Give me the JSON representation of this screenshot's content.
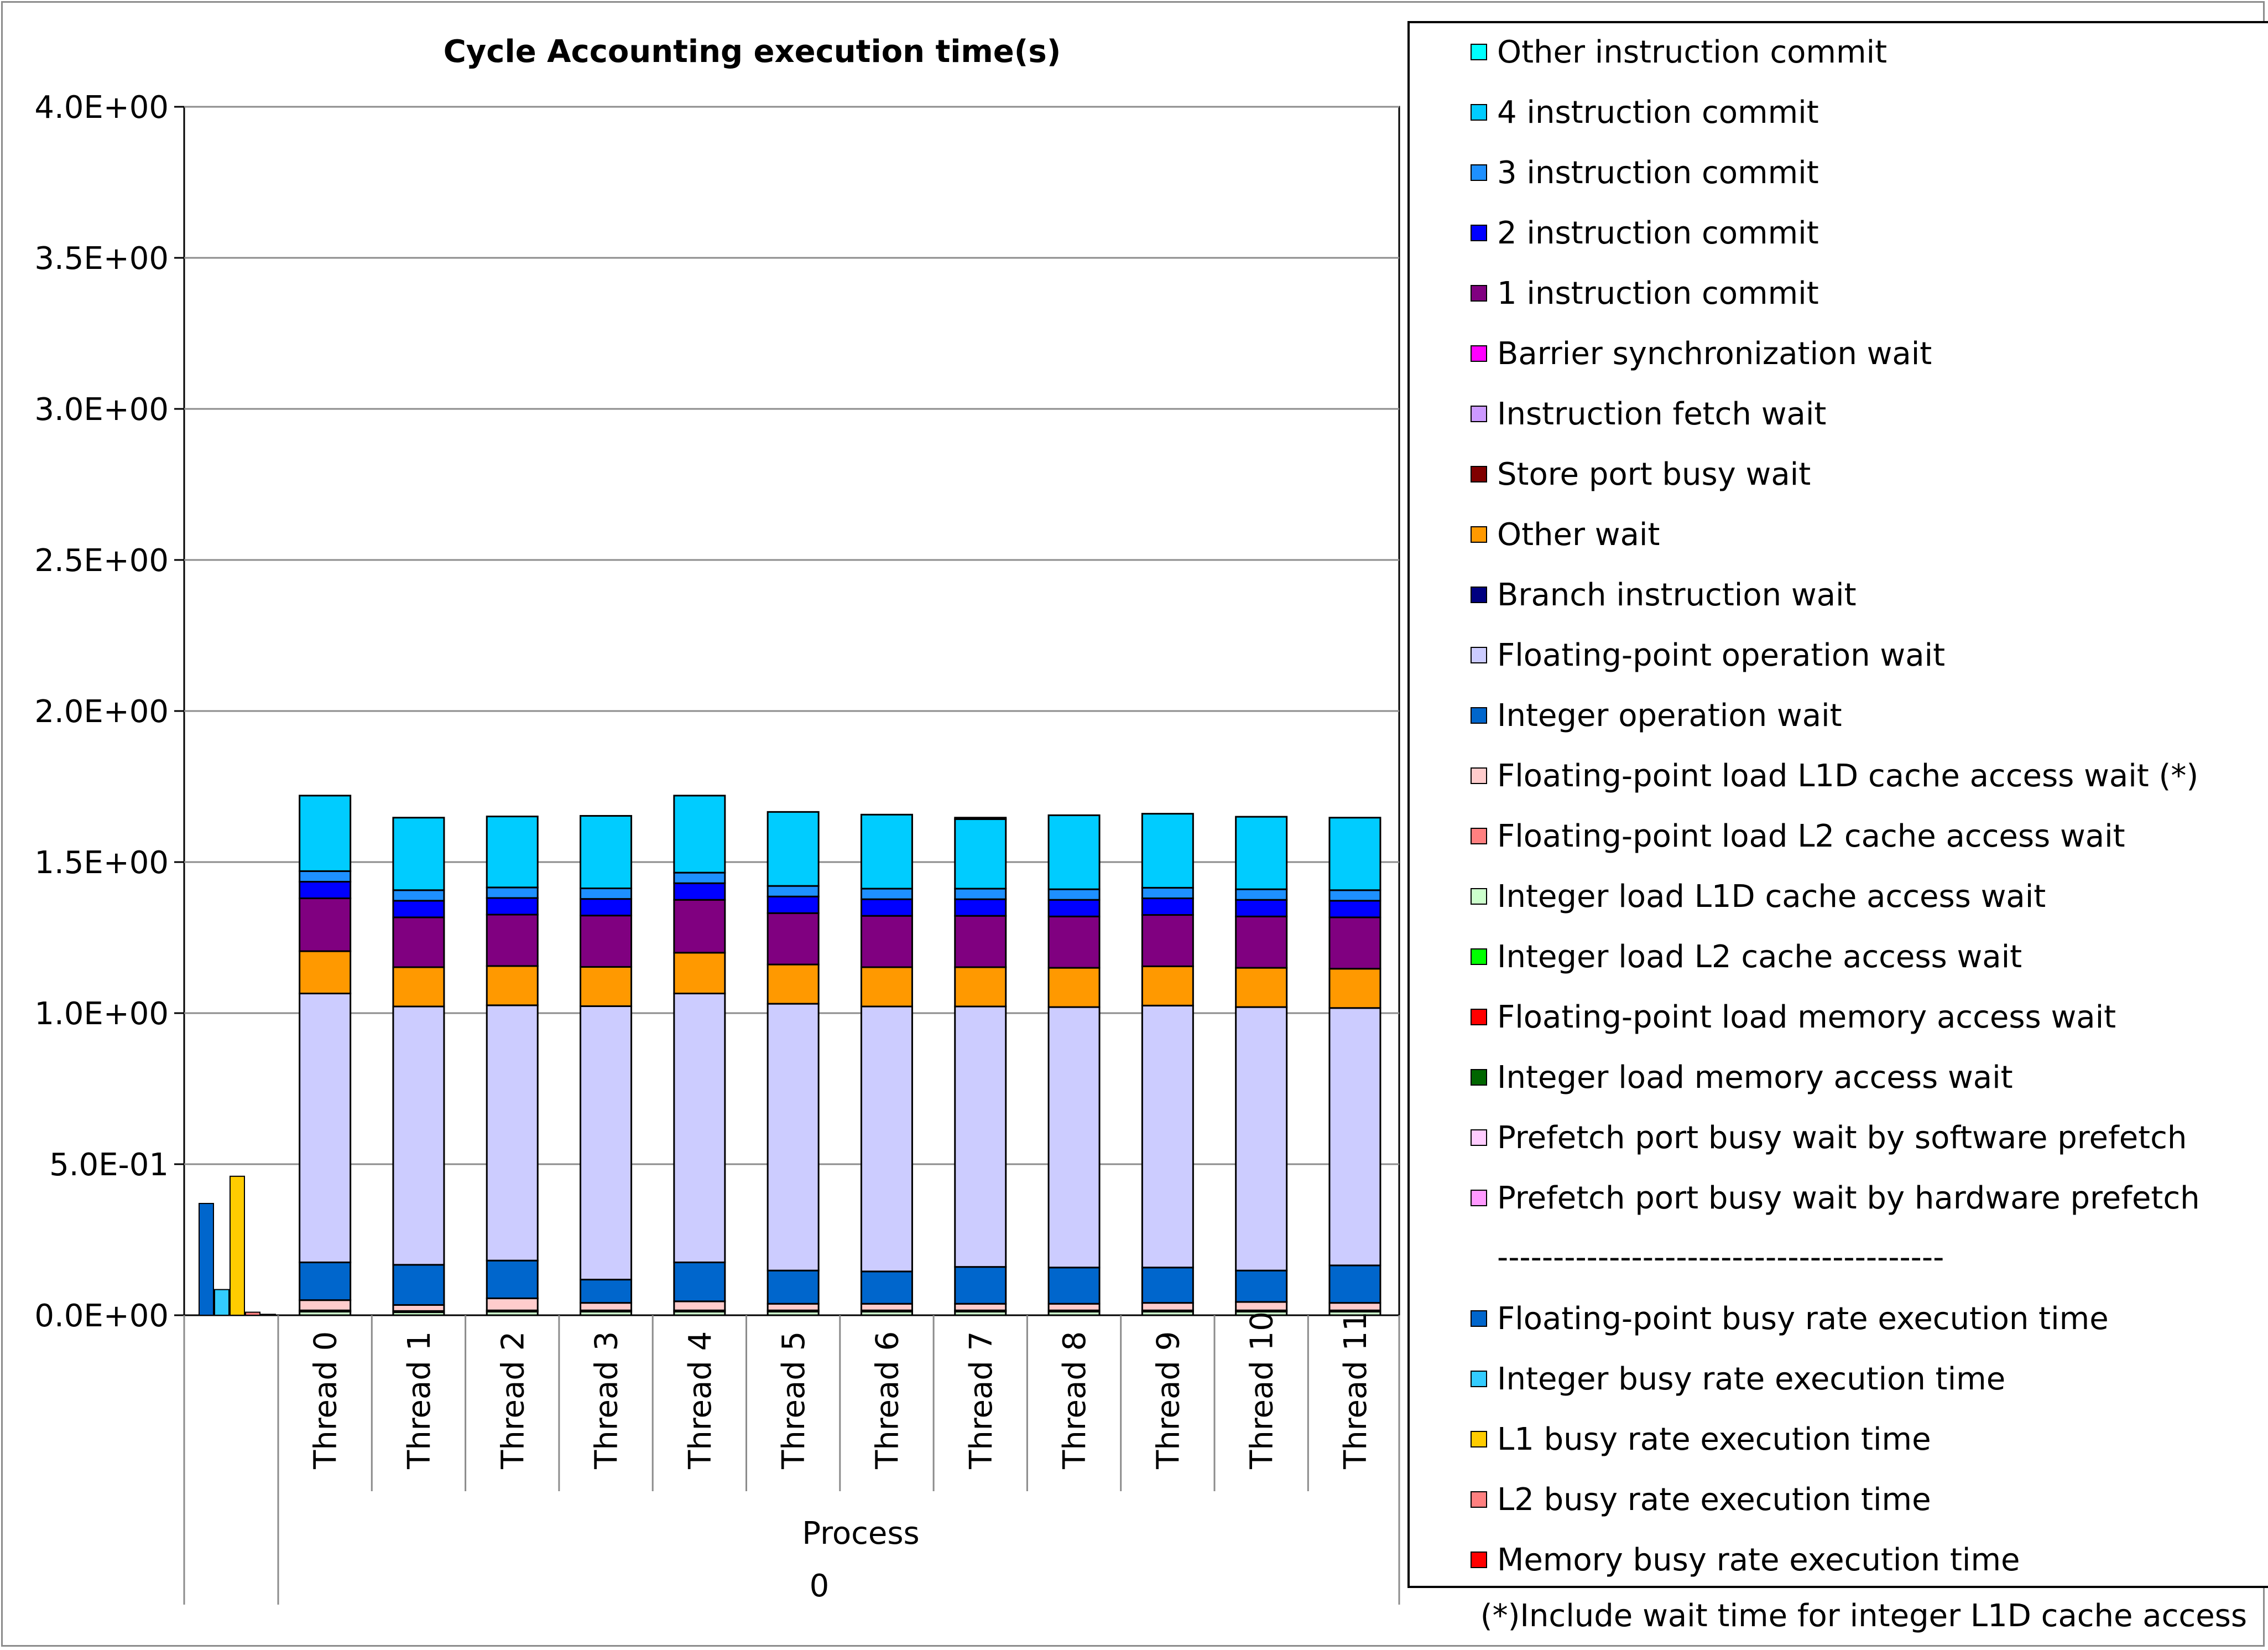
{
  "chart_data": {
    "type": "bar",
    "stacked": true,
    "title": "Cycle Accounting execution time(s)",
    "ylim": [
      0,
      4.0
    ],
    "ytick_values": [
      0,
      0.5,
      1.0,
      1.5,
      2.0,
      2.5,
      3.0,
      3.5,
      4.0
    ],
    "ytick_labels": [
      "0.0E+00",
      "5.0E-01",
      "1.0E+00",
      "1.5E+00",
      "2.0E+00",
      "2.5E+00",
      "3.0E+00",
      "3.5E+00",
      "4.0E+00"
    ],
    "grid": true,
    "group_label": "Process",
    "group_value": "0",
    "categories": [
      "Thread 0",
      "Thread 1",
      "Thread 2",
      "Thread 3",
      "Thread 4",
      "Thread 5",
      "Thread 6",
      "Thread 7",
      "Thread 8",
      "Thread 9",
      "Thread 10",
      "Thread 11"
    ],
    "series": [
      {
        "name": "Integer load L1D cache access wait",
        "color": "#ccffcc",
        "values": [
          0.012,
          0.01,
          0.012,
          0.012,
          0.012,
          0.012,
          0.012,
          0.012,
          0.012,
          0.012,
          0.012,
          0.012
        ]
      },
      {
        "name": "Floating-point load L2 cache access wait",
        "color": "#ff8080",
        "values": [
          0.004,
          0.004,
          0.004,
          0.004,
          0.004,
          0.004,
          0.004,
          0.004,
          0.004,
          0.004,
          0.004,
          0.004
        ]
      },
      {
        "name": "Floating-point load L1D cache access wait (*)",
        "color": "#ffcccc",
        "values": [
          0.034,
          0.02,
          0.04,
          0.025,
          0.03,
          0.022,
          0.022,
          0.022,
          0.022,
          0.025,
          0.028,
          0.025
        ]
      },
      {
        "name": "Integer operation wait",
        "color": "#0066cc",
        "values": [
          0.125,
          0.133,
          0.125,
          0.077,
          0.129,
          0.11,
          0.107,
          0.122,
          0.12,
          0.117,
          0.104,
          0.124
        ]
      },
      {
        "name": "Floating-point operation wait",
        "color": "#ccccff",
        "values": [
          0.89,
          0.855,
          0.845,
          0.905,
          0.89,
          0.883,
          0.877,
          0.862,
          0.862,
          0.867,
          0.872,
          0.852
        ]
      },
      {
        "name": "Other wait",
        "color": "#ff9900",
        "values": [
          0.14,
          0.13,
          0.13,
          0.13,
          0.135,
          0.13,
          0.13,
          0.13,
          0.13,
          0.13,
          0.13,
          0.13
        ]
      },
      {
        "name": "1 instruction commit",
        "color": "#800080",
        "values": [
          0.175,
          0.165,
          0.17,
          0.17,
          0.175,
          0.17,
          0.17,
          0.17,
          0.17,
          0.17,
          0.17,
          0.17
        ]
      },
      {
        "name": "2 instruction commit",
        "color": "#0000ff",
        "values": [
          0.055,
          0.055,
          0.055,
          0.055,
          0.055,
          0.055,
          0.055,
          0.055,
          0.055,
          0.055,
          0.055,
          0.055
        ]
      },
      {
        "name": "3 instruction commit",
        "color": "#1e90ff",
        "values": [
          0.035,
          0.035,
          0.035,
          0.035,
          0.035,
          0.035,
          0.035,
          0.035,
          0.035,
          0.035,
          0.035,
          0.035
        ]
      },
      {
        "name": "4 instruction commit",
        "color": "#00ccff",
        "values": [
          0.25,
          0.24,
          0.235,
          0.24,
          0.255,
          0.245,
          0.245,
          0.23,
          0.245,
          0.245,
          0.24,
          0.24
        ]
      },
      {
        "name": "Other instruction commit",
        "color": "#00ffff",
        "values": [
          0,
          0,
          0,
          0,
          0,
          0,
          0,
          0.005,
          0,
          0,
          0,
          0
        ]
      }
    ],
    "process_bars": [
      {
        "name": "Floating-point busy rate execution time",
        "color": "#0066cc",
        "value": 0.37
      },
      {
        "name": "Integer busy rate execution time",
        "color": "#33ccff",
        "value": 0.085
      },
      {
        "name": "L1 busy rate execution time",
        "color": "#ffcc00",
        "value": 0.46
      },
      {
        "name": "L2 busy rate execution time",
        "color": "#ff8080",
        "value": 0.01
      },
      {
        "name": "Memory busy rate execution time",
        "color": "#ff0000",
        "value": 0.003
      }
    ],
    "legend_position": "right"
  },
  "legend": {
    "items": [
      {
        "label": "Other instruction commit",
        "color": "#00ffff"
      },
      {
        "label": "4 instruction commit",
        "color": "#00ccff"
      },
      {
        "label": "3 instruction commit",
        "color": "#1e90ff"
      },
      {
        "label": "2 instruction commit",
        "color": "#0000ff"
      },
      {
        "label": "1 instruction commit",
        "color": "#800080"
      },
      {
        "label": "Barrier synchronization wait",
        "color": "#ff00ff"
      },
      {
        "label": "Instruction fetch wait",
        "color": "#cc99ff"
      },
      {
        "label": "Store port busy wait",
        "color": "#800000"
      },
      {
        "label": "Other wait",
        "color": "#ff9900"
      },
      {
        "label": "Branch instruction wait",
        "color": "#000080"
      },
      {
        "label": "Floating-point operation wait",
        "color": "#ccccff"
      },
      {
        "label": "Integer operation wait",
        "color": "#0066cc"
      },
      {
        "label": "Floating-point load L1D cache access wait (*)",
        "color": "#ffcccc"
      },
      {
        "label": "Floating-point load L2 cache access wait",
        "color": "#ff8080"
      },
      {
        "label": "Integer load L1D cache access wait",
        "color": "#ccffcc"
      },
      {
        "label": "Integer load L2 cache access wait",
        "color": "#00ff00"
      },
      {
        "label": "Floating-point load memory access wait",
        "color": "#ff0000"
      },
      {
        "label": "Integer load memory access wait",
        "color": "#006600"
      },
      {
        "label": "Prefetch port busy wait by software prefetch",
        "color": "#ffccff"
      },
      {
        "label": "Prefetch port busy wait by hardware prefetch",
        "color": "#ff99ff"
      }
    ],
    "separator": "----------------------------------------",
    "items2": [
      {
        "label": "Floating-point busy rate execution time",
        "color": "#0066cc"
      },
      {
        "label": "Integer busy rate execution time",
        "color": "#33ccff"
      },
      {
        "label": "L1 busy rate execution time",
        "color": "#ffcc00"
      },
      {
        "label": "L2 busy rate execution time",
        "color": "#ff8080"
      },
      {
        "label": "Memory busy rate execution time",
        "color": "#ff0000"
      }
    ]
  },
  "footnote": "(*)Include wait time for integer L1D cache access"
}
